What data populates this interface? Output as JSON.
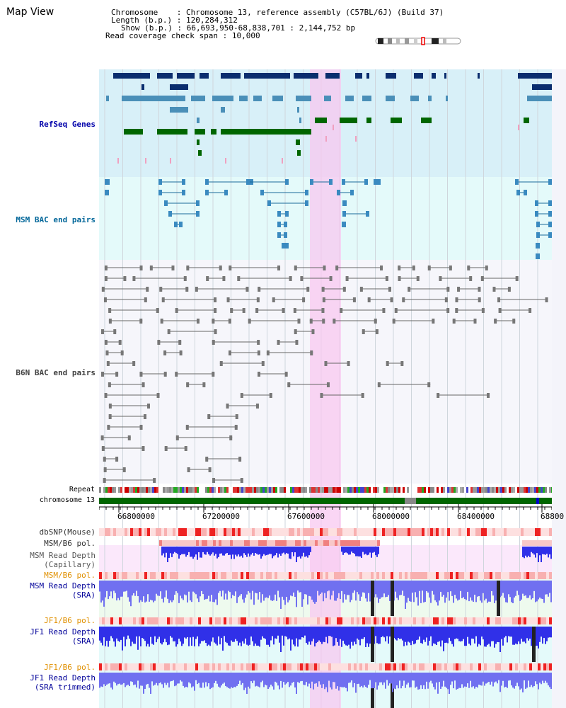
{
  "page_title": "Map View",
  "info": {
    "chromosome_label": "Chromosome",
    "chromosome_value": "Chromosome 13, reference assembly (C57BL/6J) (Build 37)",
    "length_label": "Length (b.p.)",
    "length_value": "120,284,312",
    "show_label": "Show (b.p.)",
    "show_value": "66,693,950-68,838,701 : 2,144,752 bp",
    "read_coverage_label": "Read coverage check span",
    "read_coverage_value": "10,000"
  },
  "tracks": {
    "refseq": "RefSeq Genes",
    "msm_bac": "MSM BAC end pairs",
    "b6n_bac": "B6N BAC end pairs",
    "repeat": "Repeat",
    "chromosome": "chromosome 13",
    "dbsnp": "dbSNP(Mouse)",
    "msm_b6_pol_1": "MSM/B6 pol.",
    "msm_depth_cap_1": "MSM Read Depth",
    "msm_depth_cap_2": "(Capillary)",
    "msm_b6_pol_2": "MSM/B6 pol.",
    "msm_depth_sra_1": "MSM Read Depth",
    "msm_depth_sra_2": "(SRA)",
    "jf1_b6_pol_1": "JF1/B6 pol.",
    "jf1_depth_sra_1": "JF1 Read Depth",
    "jf1_depth_sra_2": "(SRA)",
    "jf1_b6_pol_2": "JF1/B6 pol.",
    "jf1_depth_trim_1": "JF1 Read Depth",
    "jf1_depth_trim_2": "(SRA trimmed)"
  },
  "axis_ticks": [
    "66800000",
    "67200000",
    "67600000",
    "68000000",
    "68400000",
    "68800"
  ],
  "colors": {
    "refseq_bg": "#d8f0f8",
    "refseq_label": "#0000aa",
    "msm_bac_label": "#006699",
    "b6n_label": "#404040",
    "highlight": "#f8c8f0",
    "gene_dark": "#0a2d6e",
    "gene_mid": "#4a8fb8",
    "gene_green": "#006600",
    "depth_blue": "#4040f0",
    "pol_orange": "#e09000",
    "label_navy": "#000099"
  }
}
